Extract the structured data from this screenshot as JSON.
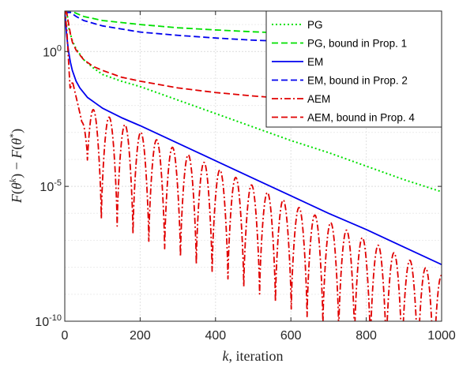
{
  "chart_data": {
    "type": "line",
    "xlabel": "k, iteration",
    "ylabel": "F(θ^k) − F(θ*)",
    "xlim": [
      0,
      1000
    ],
    "ylim_log10": [
      -10,
      1.5
    ],
    "y_scale": "log",
    "grid": true,
    "legend_position": "top-right",
    "x_ticks": [
      0,
      200,
      400,
      600,
      800,
      1000
    ],
    "y_ticks": [
      {
        "exp": 0,
        "label": "10",
        "sup": "0"
      },
      {
        "exp": -5,
        "label": "10",
        "sup": "-5"
      },
      {
        "exp": -10,
        "label": "10",
        "sup": "-10"
      }
    ],
    "series": [
      {
        "name": "PG",
        "color": "#00e000",
        "dash": "dotted",
        "x": [
          5,
          10,
          20,
          30,
          50,
          75,
          100,
          150,
          200,
          300,
          400,
          500,
          600,
          700,
          800,
          900,
          1000
        ],
        "y_log10": [
          1.6,
          0.9,
          0.4,
          0.1,
          -0.3,
          -0.6,
          -0.85,
          -1.1,
          -1.3,
          -1.8,
          -2.3,
          -2.8,
          -3.3,
          -3.75,
          -4.25,
          -4.75,
          -5.2
        ]
      },
      {
        "name": "PG, bound in Prop. 1",
        "color": "#00e000",
        "dash": "dashed",
        "x": [
          0,
          25,
          50,
          100,
          200,
          300,
          400,
          500,
          600,
          700,
          800,
          900,
          1000
        ],
        "y_log10": [
          1.45,
          1.45,
          1.3,
          1.15,
          1.0,
          0.88,
          0.8,
          0.73,
          0.68,
          0.63,
          0.6,
          0.57,
          0.54
        ]
      },
      {
        "name": "EM",
        "color": "#0000ee",
        "dash": "solid",
        "x": [
          0,
          5,
          10,
          15,
          20,
          30,
          40,
          60,
          80,
          100,
          150,
          200,
          300,
          400,
          500,
          600,
          700,
          800,
          900,
          1000
        ],
        "y_log10": [
          1.5,
          0.6,
          0.0,
          -0.4,
          -0.7,
          -1.1,
          -1.35,
          -1.7,
          -1.9,
          -2.1,
          -2.45,
          -2.75,
          -3.4,
          -4.05,
          -4.7,
          -5.35,
          -6.0,
          -6.6,
          -7.25,
          -7.9
        ]
      },
      {
        "name": "EM, bound in Prop. 2",
        "color": "#0000ee",
        "dash": "dashed",
        "x": [
          0,
          15,
          30,
          50,
          100,
          200,
          300,
          400,
          500,
          600,
          700,
          800,
          900,
          1000
        ],
        "y_log10": [
          1.45,
          1.45,
          1.3,
          1.15,
          0.95,
          0.72,
          0.6,
          0.5,
          0.42,
          0.37,
          0.32,
          0.28,
          0.25,
          0.22
        ]
      },
      {
        "name": "AEM",
        "color": "#e00000",
        "dash": "dashdot",
        "amplitude_log10": 1.7,
        "period": 42,
        "first_min": 97
      },
      {
        "name": "AEM, bound in Prop. 4",
        "color": "#e00000",
        "dash": "dashed",
        "x": [
          0,
          5,
          10,
          15,
          20,
          30,
          50,
          75,
          100,
          150,
          200,
          300,
          400,
          500,
          600,
          700,
          800,
          900,
          1000
        ],
        "y_log10": [
          1.5,
          1.45,
          1.05,
          0.65,
          0.35,
          0.05,
          -0.3,
          -0.55,
          -0.7,
          -0.95,
          -1.1,
          -1.35,
          -1.52,
          -1.65,
          -1.75,
          -1.83,
          -1.9,
          -1.95,
          -2.0
        ]
      }
    ]
  }
}
